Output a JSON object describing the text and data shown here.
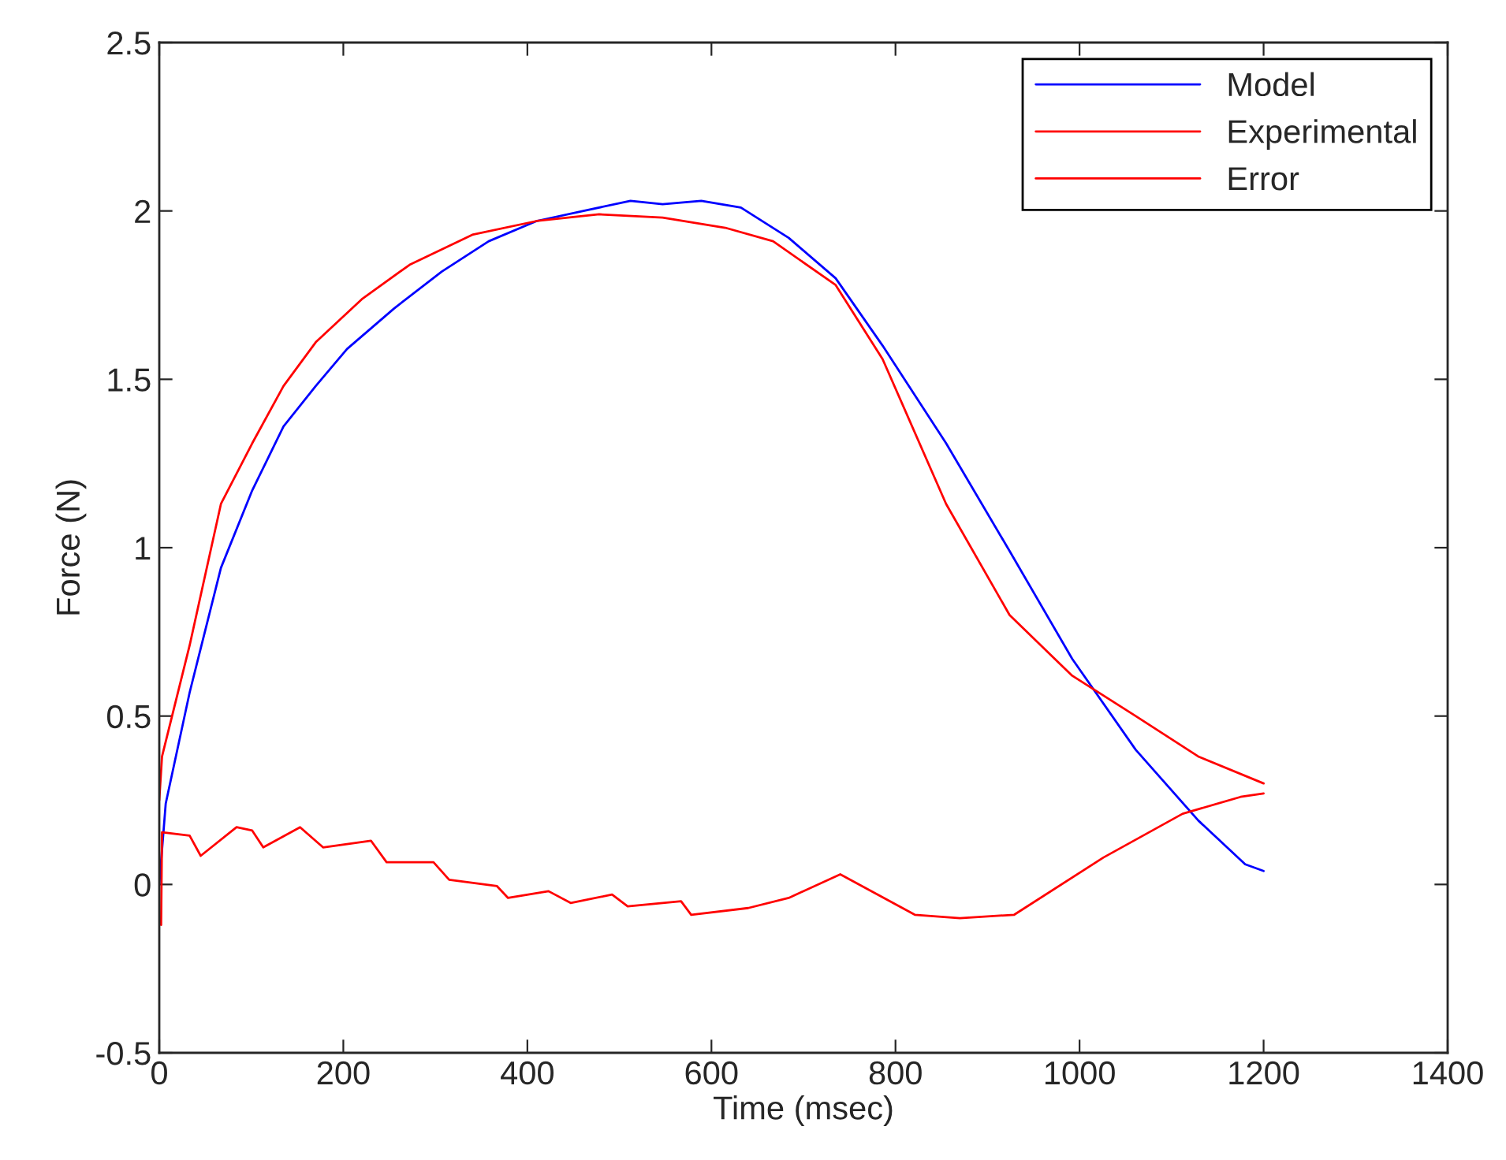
{
  "chart_data": {
    "type": "line",
    "xlabel": "Time (msec)",
    "ylabel": "Force (N)",
    "xlim": [
      0,
      1400
    ],
    "xticks": [
      0,
      200,
      400,
      600,
      800,
      1000,
      1200,
      1400
    ],
    "ylim": [
      -0.5,
      2.5
    ],
    "yticks": [
      -0.5,
      0,
      0.5,
      1,
      1.5,
      2,
      2.5
    ],
    "grid": false,
    "legend": "top right",
    "marker": "none",
    "line_style": "solid",
    "series": [
      {
        "name": "Model",
        "color": "#0000ff",
        "x": [
          0,
          7,
          33,
          67,
          101,
          135,
          170,
          204,
          255,
          307,
          358,
          410,
          461,
          512,
          547,
          589,
          632,
          684,
          735,
          786,
          855,
          924,
          992,
          1061,
          1129,
          1180,
          1200
        ],
        "values": [
          0.0,
          0.24,
          0.57,
          0.94,
          1.17,
          1.36,
          1.48,
          1.59,
          1.71,
          1.82,
          1.91,
          1.97,
          2.0,
          2.03,
          2.02,
          2.03,
          2.01,
          1.92,
          1.8,
          1.6,
          1.31,
          0.99,
          0.67,
          0.4,
          0.19,
          0.06,
          0.04
        ]
      },
      {
        "name": "Experimental",
        "color": "#ff0000",
        "x": [
          0,
          3,
          33,
          67,
          101,
          135,
          170,
          221,
          272,
          341,
          410,
          478,
          547,
          615,
          667,
          735,
          786,
          855,
          924,
          992,
          1061,
          1129,
          1200
        ],
        "values": [
          0.25,
          0.38,
          0.71,
          1.13,
          1.31,
          1.48,
          1.61,
          1.74,
          1.84,
          1.93,
          1.97,
          1.99,
          1.98,
          1.95,
          1.91,
          1.78,
          1.56,
          1.13,
          0.8,
          0.62,
          0.5,
          0.38,
          0.3
        ]
      },
      {
        "name": "Error",
        "color": "#ff0000",
        "x": [
          2,
          3,
          33,
          45,
          84,
          101,
          113,
          153,
          178,
          230,
          247,
          298,
          315,
          367,
          379,
          423,
          447,
          492,
          509,
          567,
          578,
          640,
          684,
          740,
          821,
          870,
          929,
          1026,
          1112,
          1175,
          1200
        ],
        "values": [
          -0.12,
          0.155,
          0.145,
          0.085,
          0.17,
          0.16,
          0.11,
          0.17,
          0.11,
          0.13,
          0.066,
          0.066,
          0.014,
          -0.005,
          -0.04,
          -0.02,
          -0.055,
          -0.03,
          -0.065,
          -0.05,
          -0.09,
          -0.07,
          -0.04,
          0.03,
          -0.09,
          -0.1,
          -0.09,
          0.08,
          0.21,
          0.26,
          0.27
        ]
      }
    ]
  }
}
